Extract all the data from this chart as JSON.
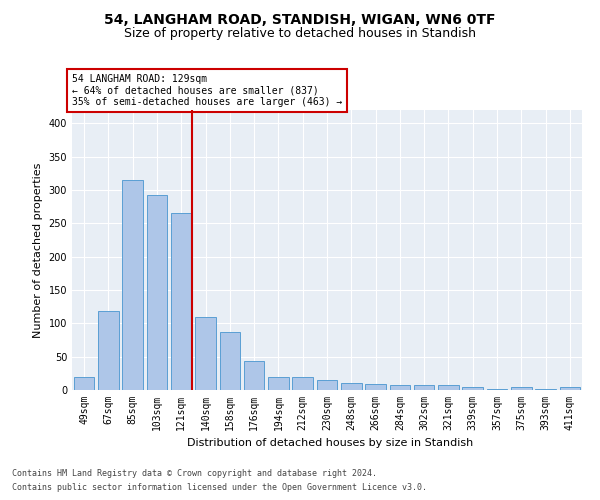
{
  "title1": "54, LANGHAM ROAD, STANDISH, WIGAN, WN6 0TF",
  "title2": "Size of property relative to detached houses in Standish",
  "xlabel": "Distribution of detached houses by size in Standish",
  "ylabel": "Number of detached properties",
  "categories": [
    "49sqm",
    "67sqm",
    "85sqm",
    "103sqm",
    "121sqm",
    "140sqm",
    "158sqm",
    "176sqm",
    "194sqm",
    "212sqm",
    "230sqm",
    "248sqm",
    "266sqm",
    "284sqm",
    "302sqm",
    "321sqm",
    "339sqm",
    "357sqm",
    "375sqm",
    "393sqm",
    "411sqm"
  ],
  "values": [
    20,
    118,
    315,
    293,
    265,
    110,
    87,
    43,
    20,
    20,
    15,
    10,
    9,
    8,
    7,
    7,
    4,
    2,
    4,
    2,
    4
  ],
  "bar_color": "#aec6e8",
  "bar_edge_color": "#5a9fd4",
  "highlight_index": 4,
  "highlight_line_color": "#cc0000",
  "annotation_text": "54 LANGHAM ROAD: 129sqm\n← 64% of detached houses are smaller (837)\n35% of semi-detached houses are larger (463) →",
  "annotation_box_color": "#cc0000",
  "ylim": [
    0,
    420
  ],
  "background_color": "#e8eef5",
  "footer1": "Contains HM Land Registry data © Crown copyright and database right 2024.",
  "footer2": "Contains public sector information licensed under the Open Government Licence v3.0.",
  "title_fontsize": 10,
  "subtitle_fontsize": 9,
  "tick_fontsize": 7,
  "ylabel_fontsize": 8,
  "xlabel_fontsize": 8
}
